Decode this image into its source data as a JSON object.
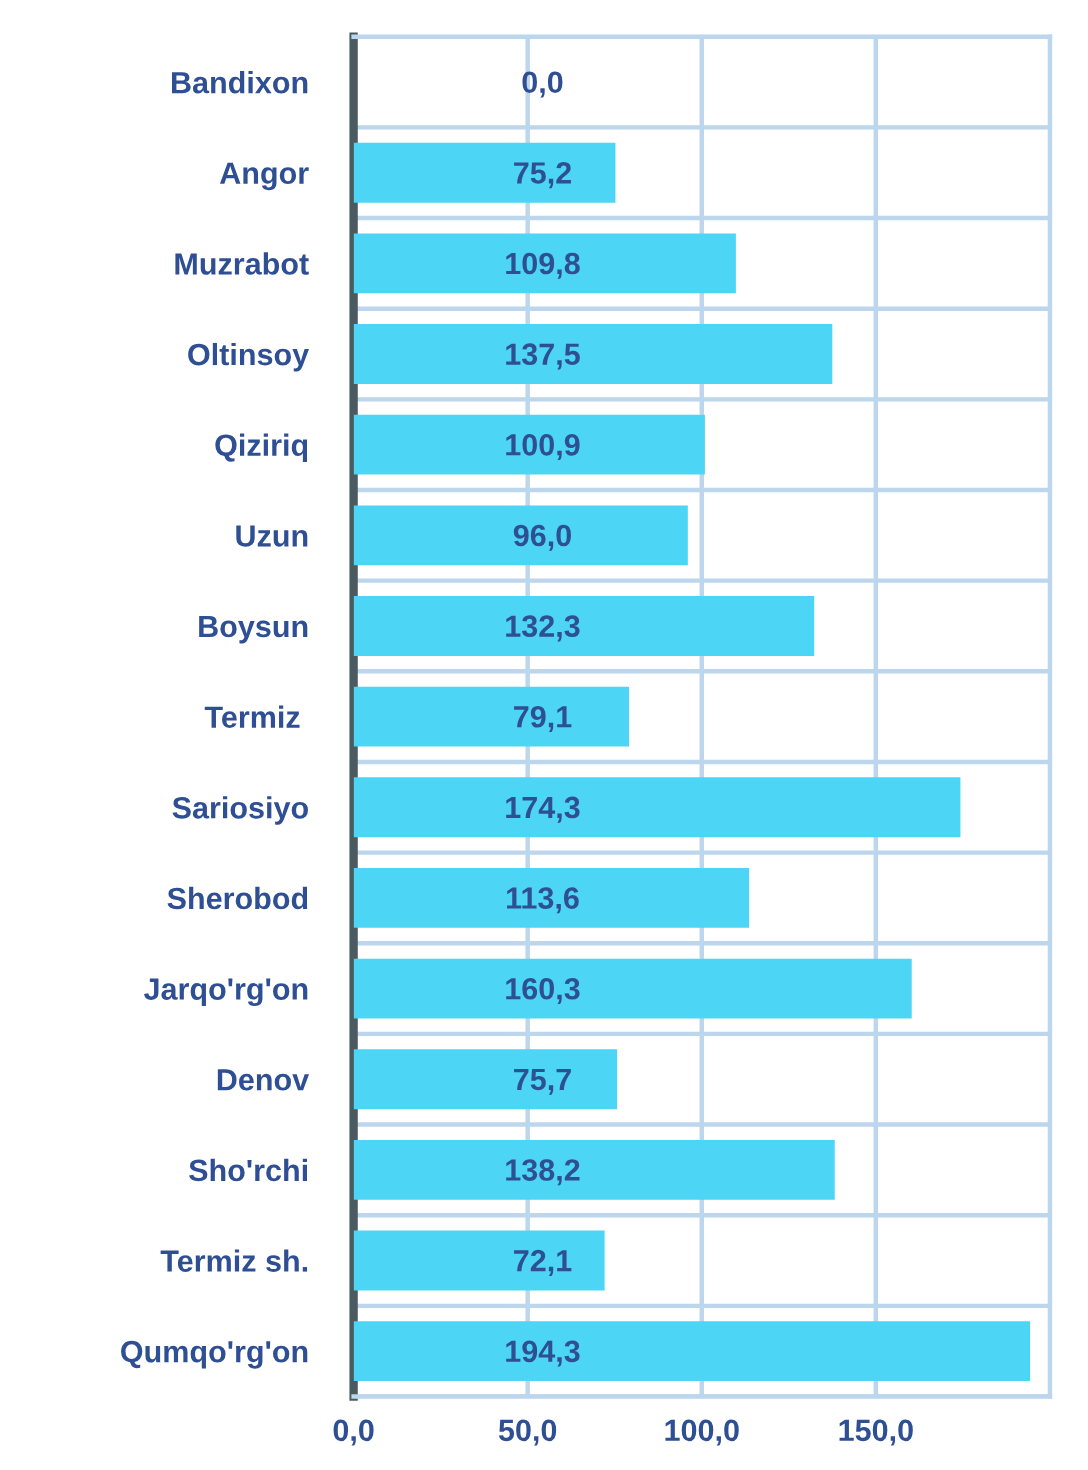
{
  "chart_data": {
    "type": "bar",
    "orientation": "horizontal",
    "categories": [
      "Bandixon",
      "Angor",
      "Muzrabot",
      "Oltinsoy",
      "Qiziriq",
      "Uzun",
      "Boysun",
      "Termiz ",
      "Sariosiyo",
      "Sherobod",
      "Jarqo'rg'on",
      "Denov",
      "Sho'rchi",
      "Termiz sh.",
      "Qumqo'rg'on"
    ],
    "values": [
      0.0,
      75.2,
      109.8,
      137.5,
      100.9,
      96.0,
      132.3,
      79.1,
      174.3,
      113.6,
      160.3,
      75.7,
      138.2,
      72.1,
      194.3
    ],
    "value_labels": [
      "0,0",
      "75,2",
      "109,8",
      "137,5",
      "100,9",
      "96,0",
      "132,3",
      "79,1",
      "174,3",
      "113,6",
      "160,3",
      "75,7",
      "138,2",
      "72,1",
      "194,3"
    ],
    "color": "#4dd5f5",
    "xlim": [
      0,
      200
    ],
    "xticks": [
      {
        "value": 0,
        "label": "0,0"
      },
      {
        "value": 50,
        "label": "50,0"
      },
      {
        "value": 100,
        "label": "100,0"
      },
      {
        "value": 150,
        "label": "150,0"
      }
    ],
    "grid": true
  }
}
